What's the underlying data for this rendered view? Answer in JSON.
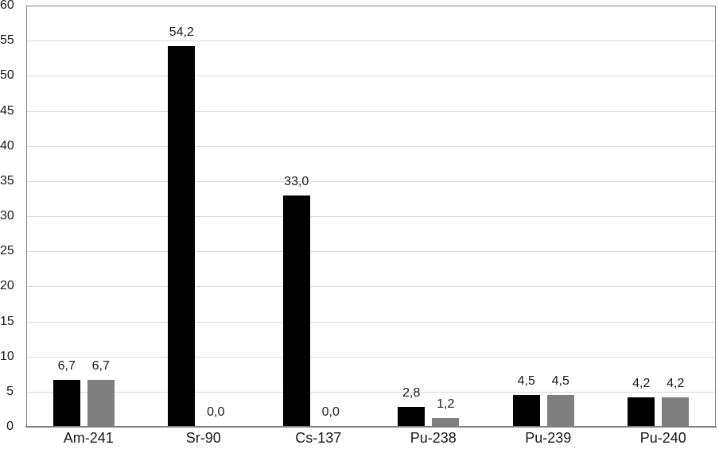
{
  "colors": {
    "background": "#ffffff",
    "series_black": "#000000",
    "series_gray": "#7f7f7f",
    "gridline": "#d9d9d9",
    "plot_border": "#808080",
    "axis_line": "#808080",
    "text": "#1a1a1a"
  },
  "chart_data": {
    "type": "bar",
    "title": "",
    "xlabel": "",
    "ylabel": "",
    "categories": [
      "Am-241",
      "Sr-90",
      "Cs-137",
      "Pu-238",
      "Pu-239",
      "Pu-240"
    ],
    "series": [
      {
        "name": "black-series",
        "color": "#000000",
        "values": [
          6.7,
          54.2,
          33.0,
          2.8,
          4.5,
          4.2
        ],
        "labels": [
          "6,7",
          "54,2",
          "33,0",
          "2,8",
          "4,5",
          "4,2"
        ]
      },
      {
        "name": "gray-series",
        "color": "#7f7f7f",
        "values": [
          6.7,
          0.0,
          0.0,
          1.2,
          4.5,
          4.2
        ],
        "labels": [
          "6,7",
          "0,0",
          "0,0",
          "1,2",
          "4,5",
          "4,2"
        ]
      }
    ],
    "ylim": [
      0,
      60
    ],
    "ytick_step": 5,
    "ytick_labels": [
      "0",
      "5",
      "10",
      "15",
      "20",
      "25",
      "30",
      "35",
      "40",
      "45",
      "50",
      "55",
      "60"
    ],
    "grid": true,
    "legend": "none",
    "decimal_separator": ","
  }
}
